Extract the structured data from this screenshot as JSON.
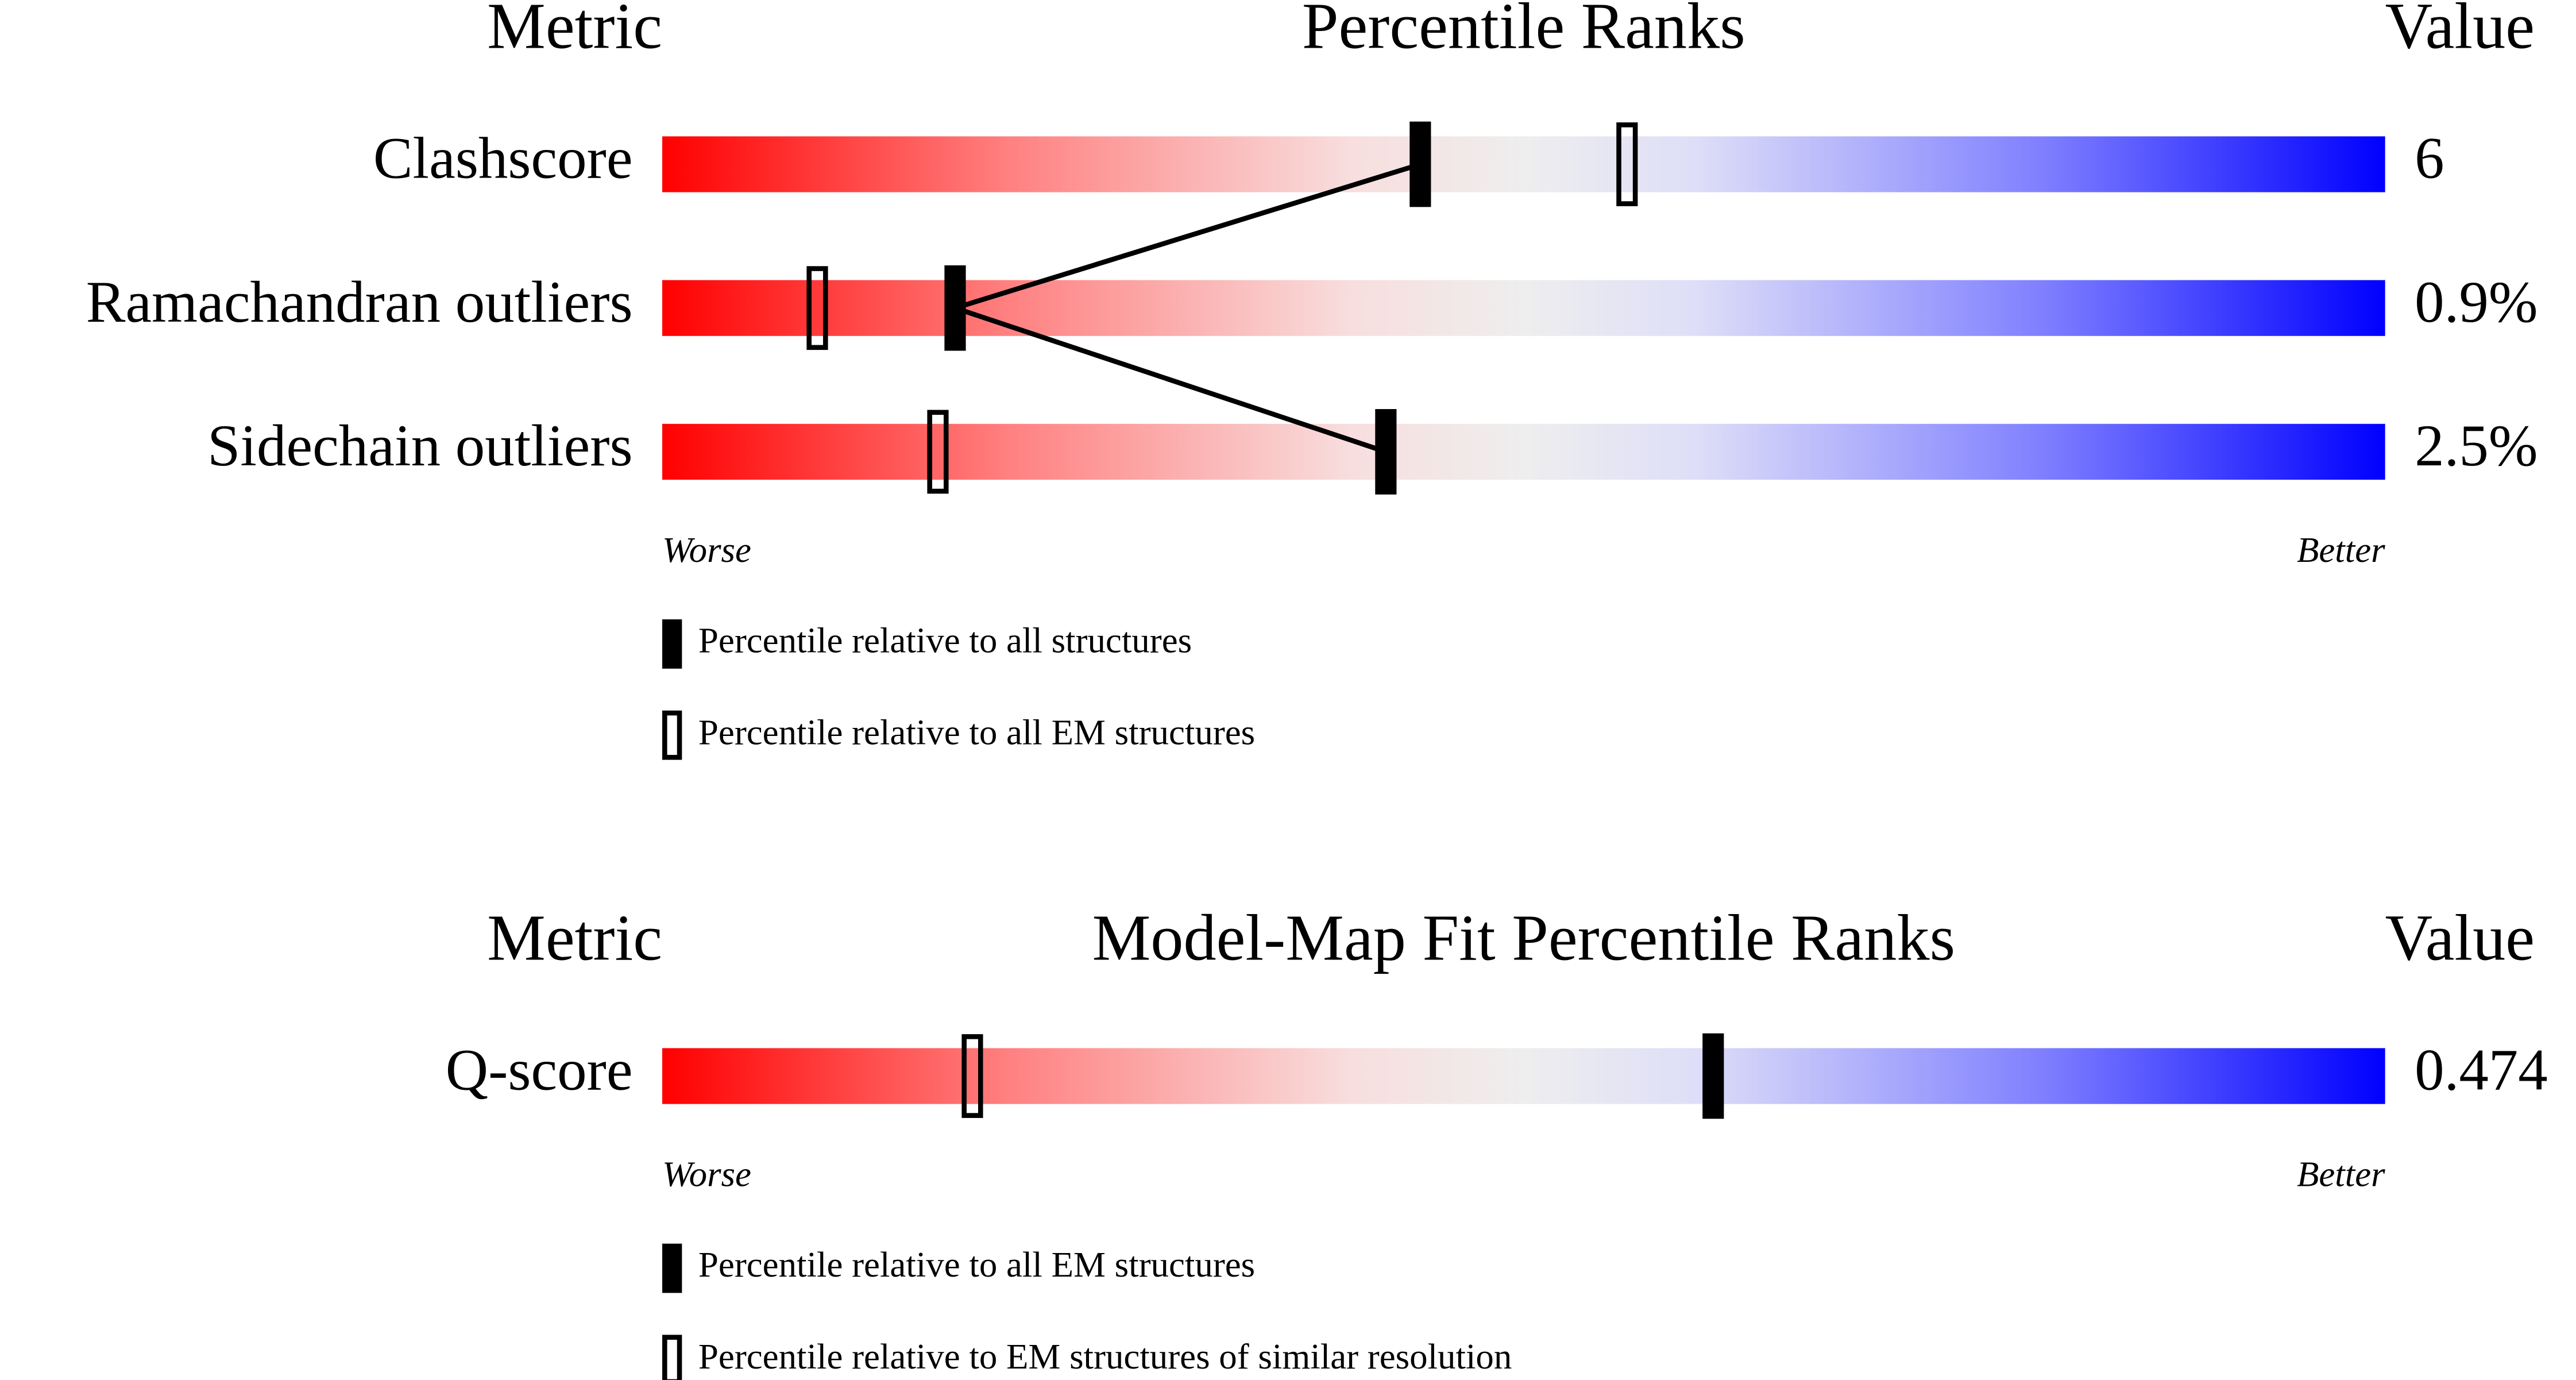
{
  "percentile_range": [
    0,
    100
  ],
  "panels": [
    {
      "metric_header": "Metric",
      "title": "Percentile Ranks",
      "value_header": "Value",
      "rows": [
        {
          "metric": "Clashscore",
          "value": "6",
          "percentile_filled": 44,
          "percentile_open": 56
        },
        {
          "metric": "Ramachandran outliers",
          "value": "0.9%",
          "percentile_filled": 17,
          "percentile_open": 9
        },
        {
          "metric": "Sidechain outliers",
          "value": "2.5%",
          "percentile_filled": 42,
          "percentile_open": 16
        }
      ],
      "worse": "Worse",
      "better": "Better",
      "legend": {
        "filled": "Percentile relative to all structures",
        "open": "Percentile relative to all EM structures"
      }
    },
    {
      "metric_header": "Metric",
      "title": "Model-Map Fit Percentile Ranks",
      "value_header": "Value",
      "rows": [
        {
          "metric": "Q-score",
          "value": "0.474",
          "percentile_filled": 61,
          "percentile_open": 18
        }
      ],
      "worse": "Worse",
      "better": "Better",
      "legend": {
        "filled": "Percentile relative to all EM structures",
        "open": "Percentile relative to EM structures of similar resolution"
      }
    }
  ]
}
